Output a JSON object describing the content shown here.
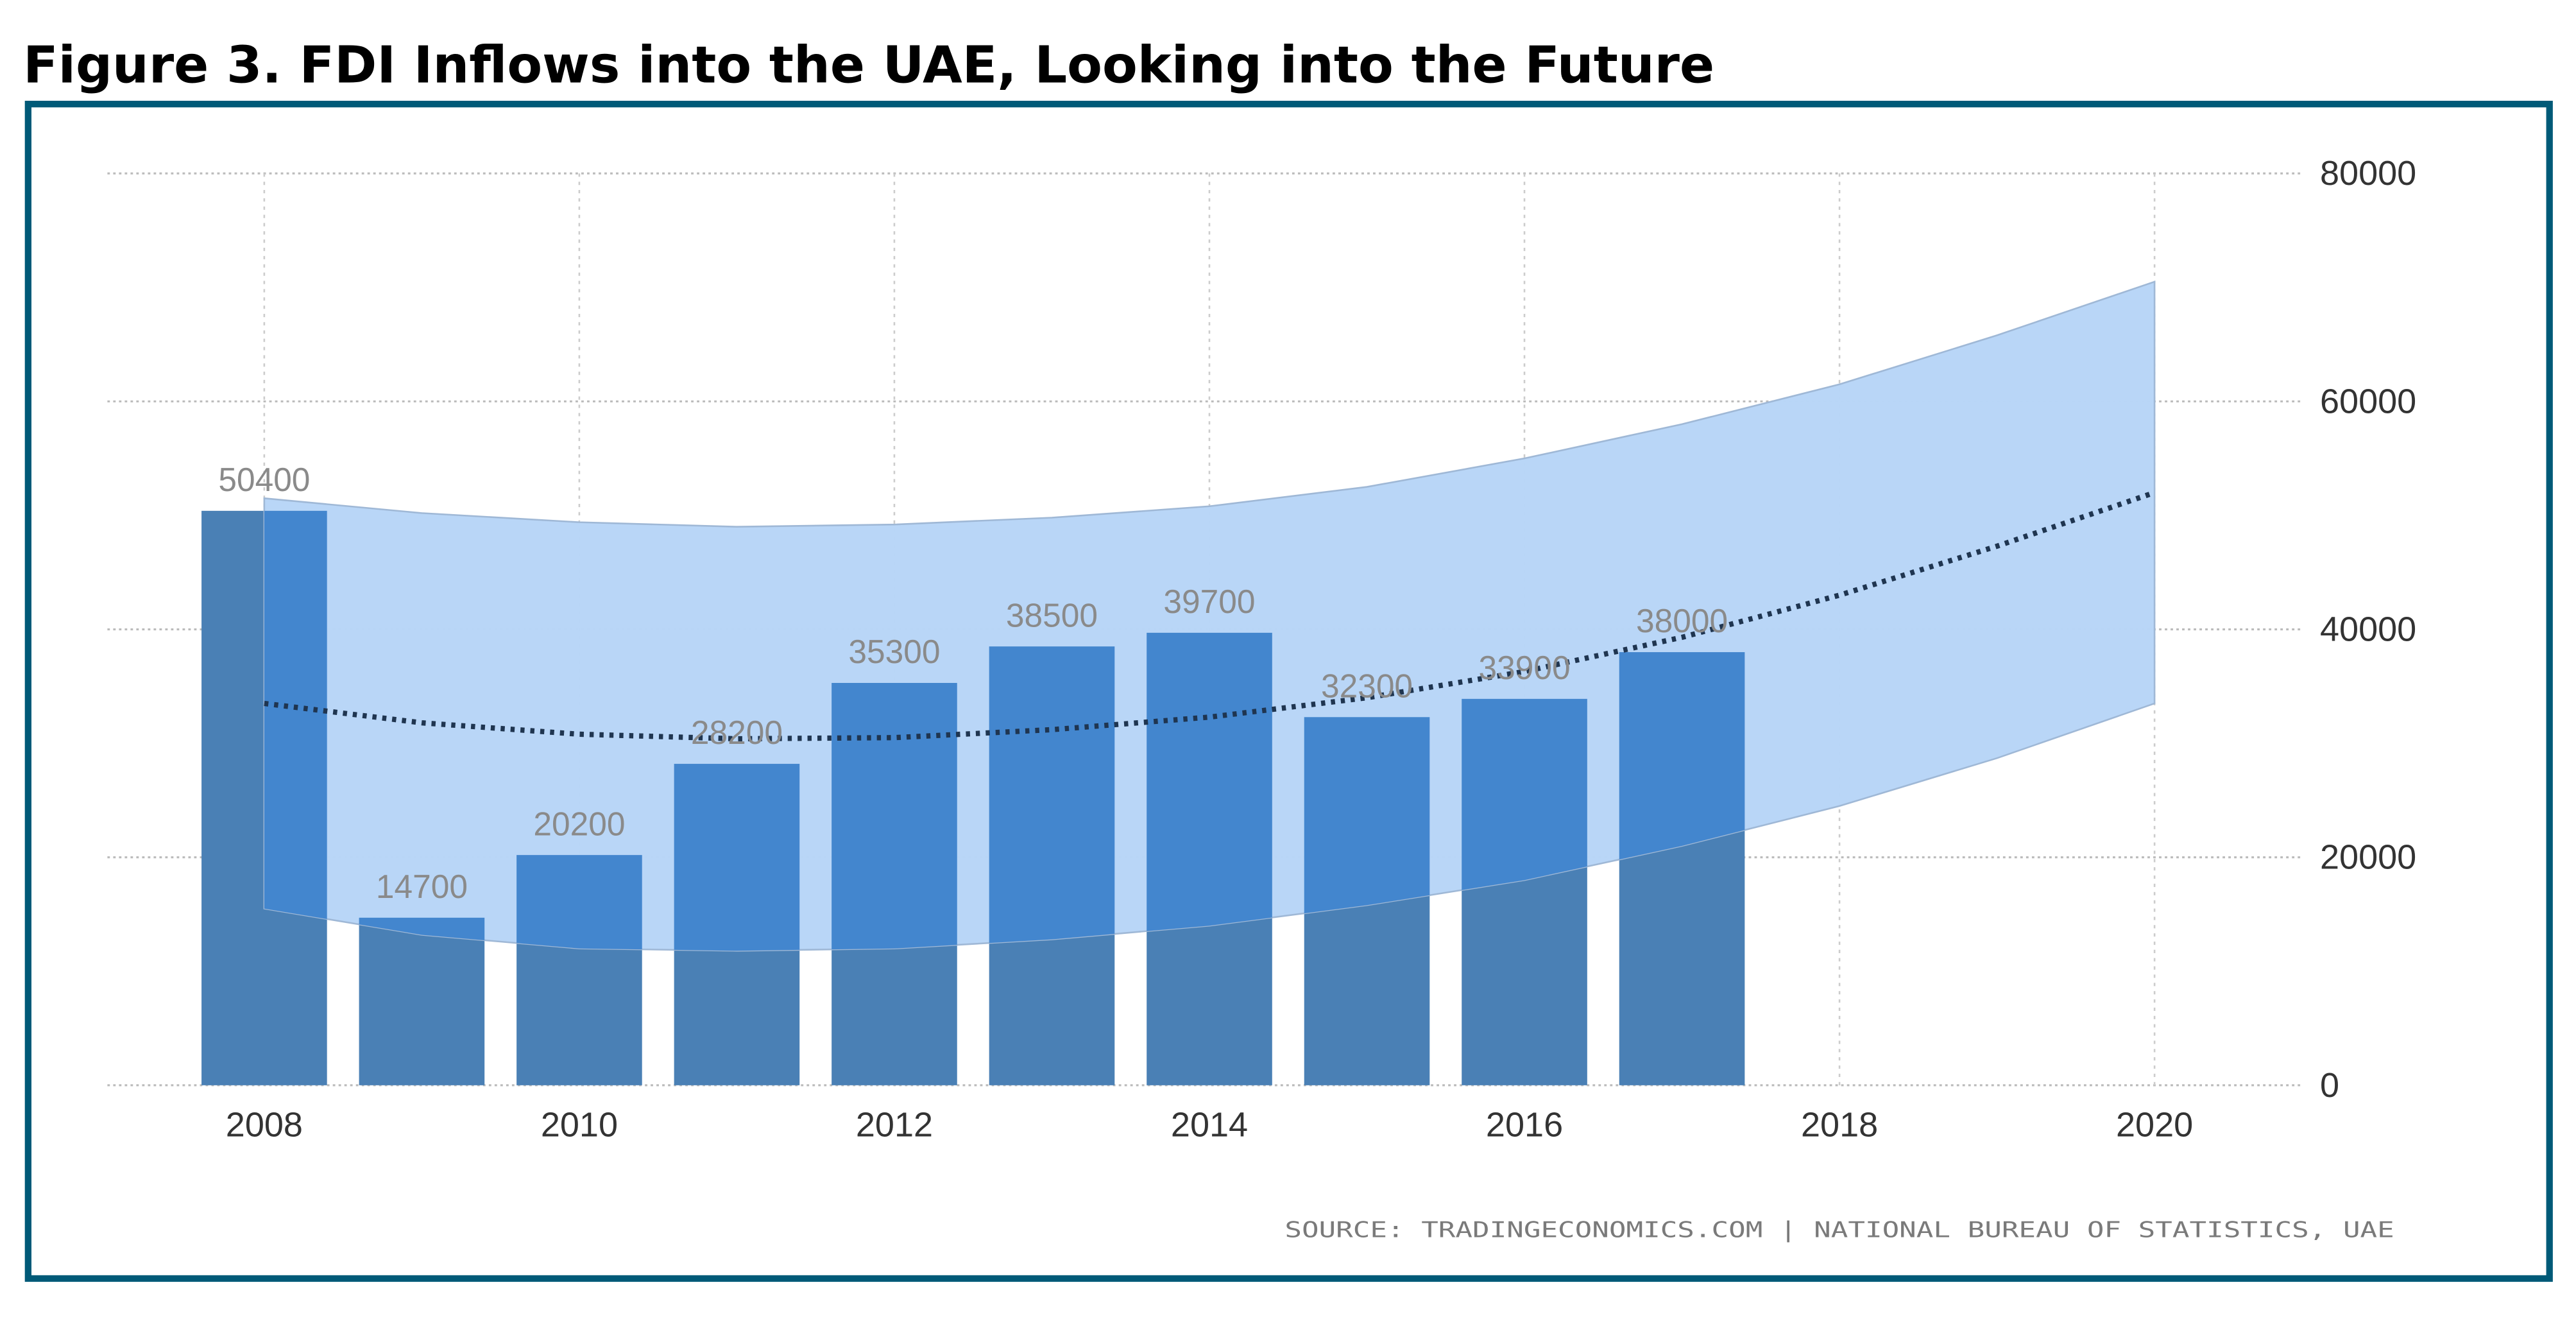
{
  "chart_data": {
    "type": "bar",
    "title": "Figure 3. FDI Inflows into the UAE, Looking into the Future",
    "xlabel": "",
    "ylabel": "",
    "x_ticks": [
      "2008",
      "2010",
      "2012",
      "2014",
      "2016",
      "2018",
      "2020"
    ],
    "y_ticks": [
      "0",
      "20000",
      "40000",
      "60000",
      "80000"
    ],
    "ylim": [
      0,
      80000
    ],
    "xlim": [
      2007,
      2021
    ],
    "y_axis_side": "right",
    "grid": true,
    "categories": [
      2008,
      2009,
      2010,
      2011,
      2012,
      2013,
      2014,
      2015,
      2016,
      2017
    ],
    "values": [
      50400,
      14700,
      20200,
      28200,
      35300,
      38500,
      39700,
      32300,
      33900,
      38000
    ],
    "value_labels": [
      "50400",
      "14700",
      "20200",
      "28200",
      "35300",
      "38500",
      "39700",
      "32300",
      "33900",
      "38000"
    ],
    "forecast_band": {
      "x": [
        2008,
        2009,
        2010,
        2011,
        2012,
        2013,
        2014,
        2015,
        2016,
        2017,
        2018,
        2019,
        2020
      ],
      "upper": [
        51500,
        50200,
        49400,
        49000,
        49200,
        49800,
        50800,
        52500,
        55000,
        58000,
        61500,
        65800,
        70500
      ],
      "lower": [
        15500,
        13200,
        12000,
        11800,
        12000,
        12800,
        14000,
        15800,
        18000,
        21000,
        24500,
        28700,
        33500
      ]
    },
    "trend_line": {
      "x": [
        2008,
        2009,
        2010,
        2011,
        2012,
        2013,
        2014,
        2015,
        2016,
        2017,
        2018,
        2019,
        2020
      ],
      "y": [
        33500,
        31800,
        30800,
        30400,
        30500,
        31200,
        32300,
        34000,
        36300,
        39300,
        43000,
        47300,
        52000
      ],
      "style": "dotted"
    },
    "colors": {
      "bar": "#4a80b5",
      "bar_in_band": "#4386ce",
      "band": "#b8d5f7",
      "trend": "#1f3550",
      "frame": "#005a78"
    },
    "source": "SOURCE: TRADINGECONOMICS.COM | NATIONAL BUREAU OF STATISTICS, UAE"
  }
}
